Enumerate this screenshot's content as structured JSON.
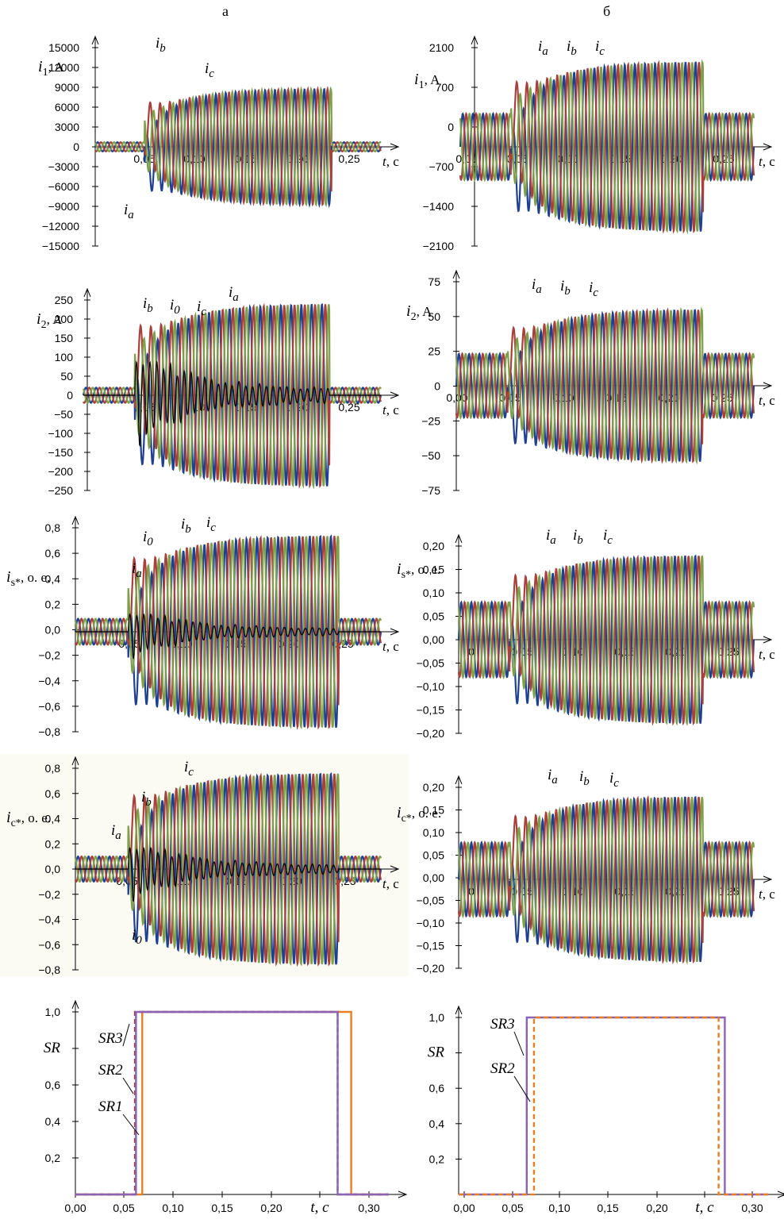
{
  "column_titles": [
    "а",
    "б"
  ],
  "colors": {
    "a": "#1f3f91",
    "b": "#a8403c",
    "c": "#7fa04a",
    "zero": "#000000",
    "sr1": "#e87e22",
    "sr2": "#a8403c",
    "sr3": "#8a63b8"
  },
  "chart_data": [
    {
      "id": "a1",
      "type": "line",
      "ylabel": "i1, A",
      "ylabel_main": "i",
      "ylabel_sub": "1",
      "ylabel_rest": ", A",
      "xlabel": "t, c",
      "xlim": [
        0,
        0.29
      ],
      "ylim": [
        -15000,
        15000
      ],
      "xticks": [
        "0,05",
        "0,10",
        "0,15",
        "0,20",
        "0,25"
      ],
      "yticks": [
        "15000",
        "12000",
        "9000",
        "6000",
        "3000",
        "0",
        "-3000",
        "-6000",
        "-9000",
        "-12000",
        "-15000"
      ],
      "fault_window": [
        0.05,
        0.24
      ],
      "pre_amplitude": 700,
      "fault_amplitude": 8800,
      "series": [
        {
          "name": "ia"
        },
        {
          "name": "ib"
        },
        {
          "name": "ic"
        }
      ],
      "annotations": [
        {
          "label": "i",
          "sub": "b"
        },
        {
          "label": "i",
          "sub": "c"
        },
        {
          "label": "i",
          "sub": "a"
        }
      ]
    },
    {
      "id": "b1",
      "type": "line",
      "ylabel": "i1, A",
      "ylabel_main": "i",
      "ylabel_sub": "1",
      "ylabel_rest": ", A",
      "xlabel": "t, c",
      "xlim": [
        0,
        0.29
      ],
      "ylim": [
        -2100,
        2100
      ],
      "xticks": [
        "0,00",
        "0,05",
        "0,10",
        "0,15",
        "0,20",
        "0,25"
      ],
      "yticks": [
        "2100",
        "700",
        "0",
        "-700",
        "-1400",
        "-2100"
      ],
      "fault_window": [
        0.05,
        0.24
      ],
      "pre_amplitude": 700,
      "fault_amplitude": 1800,
      "series": [
        {
          "name": "ia"
        },
        {
          "name": "ib"
        },
        {
          "name": "ic"
        }
      ],
      "annotations": [
        {
          "label": "i",
          "sub": "a"
        },
        {
          "label": "i",
          "sub": "b"
        },
        {
          "label": "i",
          "sub": "c"
        }
      ]
    },
    {
      "id": "a2",
      "type": "line",
      "ylabel": "i2, A",
      "ylabel_main": "i",
      "ylabel_sub": "2",
      "ylabel_rest": ", A",
      "xlabel": "t, c",
      "xlim": [
        0,
        0.29
      ],
      "ylim": [
        -250,
        250
      ],
      "xticks": [
        "0,05",
        "0,10",
        "0,15",
        "0,20",
        "0,25"
      ],
      "yticks": [
        "250",
        "200",
        "150",
        "100",
        "50",
        "0",
        "-50",
        "-100",
        "-150",
        "-200",
        "-250"
      ],
      "fault_window": [
        0.05,
        0.24
      ],
      "pre_amplitude": 20,
      "fault_amplitude": 240,
      "zero_amplitude": 130,
      "series": [
        {
          "name": "ia"
        },
        {
          "name": "ib"
        },
        {
          "name": "ic"
        },
        {
          "name": "i0"
        }
      ],
      "annotations": [
        {
          "label": "i",
          "sub": "b"
        },
        {
          "label": "i",
          "sub": "0"
        },
        {
          "label": "i",
          "sub": "c"
        },
        {
          "label": "i",
          "sub": "a"
        }
      ]
    },
    {
      "id": "b2",
      "type": "line",
      "ylabel": "i2, A",
      "ylabel_main": "i",
      "ylabel_sub": "2",
      "ylabel_rest": ", A",
      "xlabel": "t, c",
      "xlim": [
        0,
        0.29
      ],
      "ylim": [
        -75,
        75
      ],
      "xticks": [
        "0,00",
        "0,05",
        "0,10",
        "0,15",
        "0,20",
        "0,25"
      ],
      "yticks": [
        "75",
        "50",
        "25",
        "0",
        "-25",
        "-50",
        "-75"
      ],
      "fault_window": [
        0.05,
        0.24
      ],
      "pre_amplitude": 23,
      "fault_amplitude": 55,
      "series": [
        {
          "name": "ia"
        },
        {
          "name": "ib"
        },
        {
          "name": "ic"
        }
      ],
      "annotations": [
        {
          "label": "i",
          "sub": "a"
        },
        {
          "label": "i",
          "sub": "b"
        },
        {
          "label": "i",
          "sub": "c"
        }
      ]
    },
    {
      "id": "a3",
      "type": "line",
      "ylabel": "is*, o. e.",
      "ylabel_main": "i",
      "ylabel_sub": "s*",
      "ylabel_rest": ", о. е.",
      "xlabel": "t, c",
      "xlim": [
        0,
        0.29
      ],
      "ylim": [
        -0.8,
        0.8
      ],
      "xticks": [
        "0,05",
        "0,10",
        "0,15",
        "0,20",
        "0,25"
      ],
      "yticks": [
        "0,8",
        "0,6",
        "0,4",
        "0,2",
        "0,0",
        "-0,2",
        "-0,4",
        "-0,6",
        "-0,8"
      ],
      "fault_window": [
        0.05,
        0.25
      ],
      "pre_amplitude": 0.1,
      "fault_amplitude": 0.74,
      "zero_amplitude": 0.2,
      "series": [
        {
          "name": "ia"
        },
        {
          "name": "ib"
        },
        {
          "name": "ic"
        },
        {
          "name": "i0"
        }
      ],
      "annotations": [
        {
          "label": "i",
          "sub": "0"
        },
        {
          "label": "i",
          "sub": "b"
        },
        {
          "label": "i",
          "sub": "c"
        },
        {
          "label": "i",
          "sub": "a"
        }
      ]
    },
    {
      "id": "b3",
      "type": "line",
      "ylabel": "is*, o. e.",
      "ylabel_main": "i",
      "ylabel_sub": "s*",
      "ylabel_rest": ", о. е.",
      "xlabel": "t, c",
      "xlim": [
        0,
        0.29
      ],
      "ylim": [
        -0.2,
        0.2
      ],
      "xticks": [
        "0",
        "0,05",
        "0,10",
        "0,15",
        "0,20",
        "0,25"
      ],
      "yticks": [
        "0,20",
        "0,15",
        "0,10",
        "0,05",
        "0,00",
        "-0,05",
        "-0,10",
        "-0,15",
        "-0,20"
      ],
      "fault_window": [
        0.05,
        0.24
      ],
      "pre_amplitude": 0.08,
      "fault_amplitude": 0.18,
      "series": [
        {
          "name": "ia"
        },
        {
          "name": "ib"
        },
        {
          "name": "ic"
        }
      ],
      "annotations": [
        {
          "label": "i",
          "sub": "a"
        },
        {
          "label": "i",
          "sub": "b"
        },
        {
          "label": "i",
          "sub": "c"
        }
      ]
    },
    {
      "id": "a4",
      "type": "line",
      "ylabel": "ic*, o. e.",
      "ylabel_main": "i",
      "ylabel_sub": "c*",
      "ylabel_rest": ", о. е.",
      "xlabel": "t, c",
      "xlim": [
        0,
        0.29
      ],
      "ylim": [
        -0.8,
        0.8
      ],
      "xticks": [
        "0,05",
        "0,10",
        "0,15",
        "0,20",
        "0,25"
      ],
      "yticks": [
        "0,8",
        "0,6",
        "0,4",
        "0,2",
        "0,0",
        "-0,2",
        "-0,4",
        "-0,6",
        "-0,8"
      ],
      "fault_window": [
        0.05,
        0.25
      ],
      "pre_amplitude": 0.1,
      "fault_amplitude": 0.76,
      "zero_amplitude": 0.25,
      "series": [
        {
          "name": "ia"
        },
        {
          "name": "ib"
        },
        {
          "name": "ic"
        },
        {
          "name": "i0"
        }
      ],
      "annotations": [
        {
          "label": "i",
          "sub": "c"
        },
        {
          "label": "i",
          "sub": "b"
        },
        {
          "label": "i",
          "sub": "a"
        },
        {
          "label": "i",
          "sub": "0"
        }
      ]
    },
    {
      "id": "b4",
      "type": "line",
      "ylabel": "ic*, o. e.",
      "ylabel_main": "i",
      "ylabel_sub": "c*",
      "ylabel_rest": ", о. е.",
      "xlabel": "t, c",
      "xlim": [
        0,
        0.29
      ],
      "ylim": [
        -0.2,
        0.2
      ],
      "xticks": [
        "0",
        "0,05",
        "0,10",
        "0,15",
        "0,20",
        "0,25"
      ],
      "yticks": [
        "0,20",
        "0,15",
        "0,10",
        "0,05",
        "0,00",
        "-0,05",
        "-0,10",
        "-0,15",
        "-0,20"
      ],
      "fault_window": [
        0.05,
        0.24
      ],
      "pre_amplitude": 0.08,
      "fault_amplitude": 0.18,
      "series": [
        {
          "name": "ia"
        },
        {
          "name": "ib"
        },
        {
          "name": "ic"
        }
      ],
      "annotations": [
        {
          "label": "i",
          "sub": "a"
        },
        {
          "label": "i",
          "sub": "b"
        },
        {
          "label": "i",
          "sub": "c"
        }
      ]
    },
    {
      "id": "a5",
      "type": "line",
      "ylabel": "SR",
      "xlabel": "t, c",
      "xlim": [
        0,
        0.3
      ],
      "ylim": [
        0,
        1.0
      ],
      "xticks": [
        "0,00",
        "0,05",
        "0,10",
        "0,15",
        "0,20",
        "t, c",
        "0,30"
      ],
      "yticks": [
        "1,0",
        "SR",
        "0,6",
        "0,4",
        "0,2"
      ],
      "series": [
        {
          "name": "SR1",
          "rise": 0.064,
          "fall": 0.264
        },
        {
          "name": "SR2",
          "rise": 0.057,
          "fall": 0.251,
          "dashed": true
        },
        {
          "name": "SR3",
          "rise": 0.058,
          "fall": 0.251
        }
      ]
    },
    {
      "id": "b5",
      "type": "line",
      "ylabel": "SR",
      "xlabel": "t, c",
      "xlim": [
        0,
        0.3
      ],
      "ylim": [
        0,
        1.0
      ],
      "xticks": [
        "0,00",
        "0,05",
        "0,10",
        "0,15",
        "0,20",
        "t, c",
        "0,30"
      ],
      "yticks": [
        "1,0",
        "SR",
        "0,6",
        "0,4",
        "0,2"
      ],
      "series": [
        {
          "name": "SR3",
          "rise": 0.066,
          "fall": 0.258
        },
        {
          "name": "SR2",
          "rise": 0.073,
          "fall": 0.252,
          "dashed": true
        }
      ]
    }
  ]
}
